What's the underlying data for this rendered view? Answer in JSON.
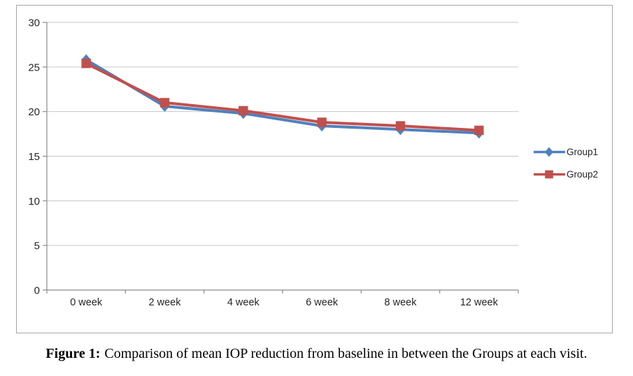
{
  "chart_data": {
    "type": "line",
    "title": "",
    "xlabel": "",
    "ylabel": "",
    "categories": [
      "0 week",
      "2 week",
      "4 week",
      "6 week",
      "8 week",
      "12 week"
    ],
    "series": [
      {
        "name": "Group1",
        "color": "#4F81BD",
        "marker": "diamond",
        "values": [
          25.8,
          20.6,
          19.8,
          18.4,
          18.0,
          17.6
        ]
      },
      {
        "name": "Group2",
        "color": "#C0504D",
        "marker": "square",
        "values": [
          25.4,
          21.0,
          20.1,
          18.8,
          18.4,
          17.9
        ]
      }
    ],
    "ylim": [
      0,
      30
    ],
    "yticks": [
      0,
      5,
      10,
      15,
      20,
      25,
      30
    ],
    "grid": true,
    "legend_position": "right",
    "colors": {
      "gridline": "#c6c6c6",
      "axis": "#8c8c8c",
      "frame_border": "#a6a6a6",
      "tick_text": "#262626"
    }
  },
  "caption": {
    "label": "Figure 1:",
    "text": "Comparison of mean IOP reduction from baseline in between the Groups at each visit."
  }
}
